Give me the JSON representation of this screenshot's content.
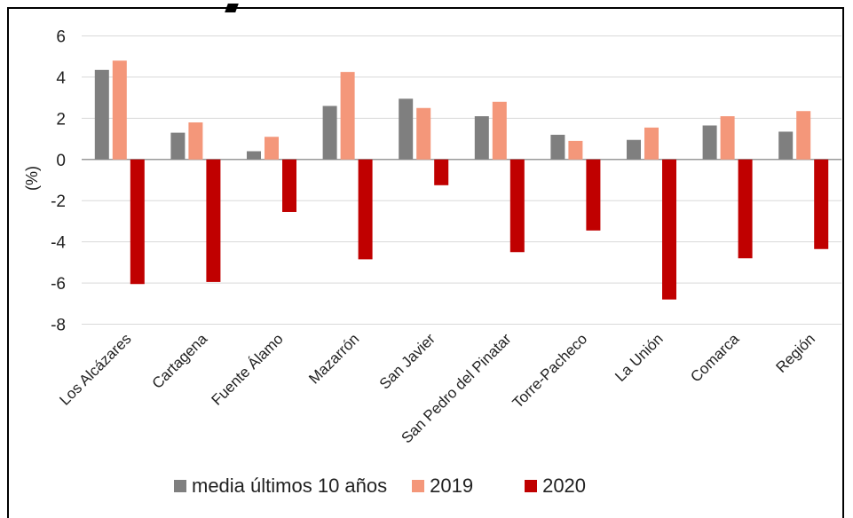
{
  "chart_data": {
    "type": "bar",
    "ylabel": "(%)",
    "ylim": [
      -8,
      6
    ],
    "yticks": [
      6,
      4,
      2,
      0,
      -2,
      -4,
      -6,
      -8
    ],
    "categories": [
      "Los Alcázares",
      "Cartagena",
      "Fuente Álamo",
      "Mazarrón",
      "San Javier",
      "San Pedro del Pinatar",
      "Torre-Pacheco",
      "La Unión",
      "Comarca",
      "Región"
    ],
    "series": [
      {
        "name": "media últimos 10 años",
        "color": "#7f7f7f",
        "values": [
          4.35,
          1.3,
          0.4,
          2.6,
          2.95,
          2.1,
          1.2,
          0.95,
          1.65,
          1.35
        ]
      },
      {
        "name": "2019",
        "color": "#f4977a",
        "values": [
          4.8,
          1.8,
          1.1,
          4.25,
          2.5,
          2.8,
          0.9,
          1.55,
          2.1,
          2.35
        ]
      },
      {
        "name": "2020",
        "color": "#c00000",
        "values": [
          -6.05,
          -5.95,
          -2.55,
          -4.85,
          -1.25,
          -4.5,
          -3.45,
          -6.8,
          -4.8,
          -4.35
        ]
      }
    ],
    "grid": true,
    "legend": "bottom"
  }
}
